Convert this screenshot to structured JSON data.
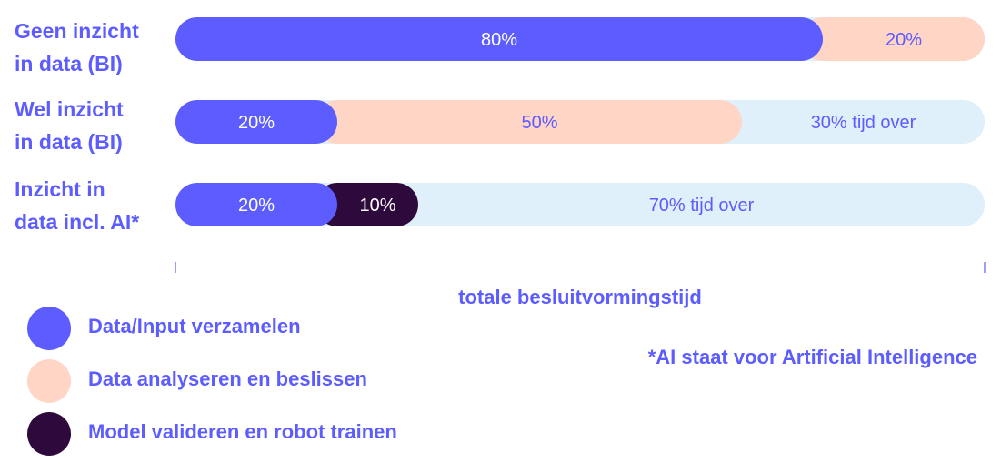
{
  "chart_data": {
    "type": "bar",
    "orientation": "horizontal",
    "stacked": true,
    "categories": [
      [
        "Geen inzicht",
        "in data (BI)"
      ],
      [
        "Wel inzicht",
        "in data (BI)"
      ],
      [
        "Inzicht in",
        "data incl. AI*"
      ]
    ],
    "series": [
      {
        "name": "Data/Input verzamelen",
        "color": "#5c5cff",
        "values": [
          80,
          20,
          20
        ],
        "labels": [
          "80%",
          "20%",
          "20%"
        ]
      },
      {
        "name": "Data analyseren en beslissen",
        "color": "#ffd5c6",
        "values": [
          20,
          50,
          0
        ],
        "labels": [
          "20%",
          "50%",
          ""
        ]
      },
      {
        "name": "Model valideren en robot trainen",
        "color": "#2d0a3b",
        "values": [
          0,
          0,
          10
        ],
        "labels": [
          "",
          "",
          "10%"
        ]
      },
      {
        "name": "",
        "color": "#e0f0fb",
        "values": [
          0,
          30,
          70
        ],
        "labels": [
          "",
          "30% tijd over",
          "70% tijd over"
        ]
      }
    ],
    "xlim": [
      0,
      100
    ],
    "xlabel": "totale besluitvormingstijd",
    "label_colors": {
      "on_dark": "#ffffff",
      "on_light": "#5c5cff"
    }
  },
  "footnote": "*AI staat voor Artificial Intelligence"
}
